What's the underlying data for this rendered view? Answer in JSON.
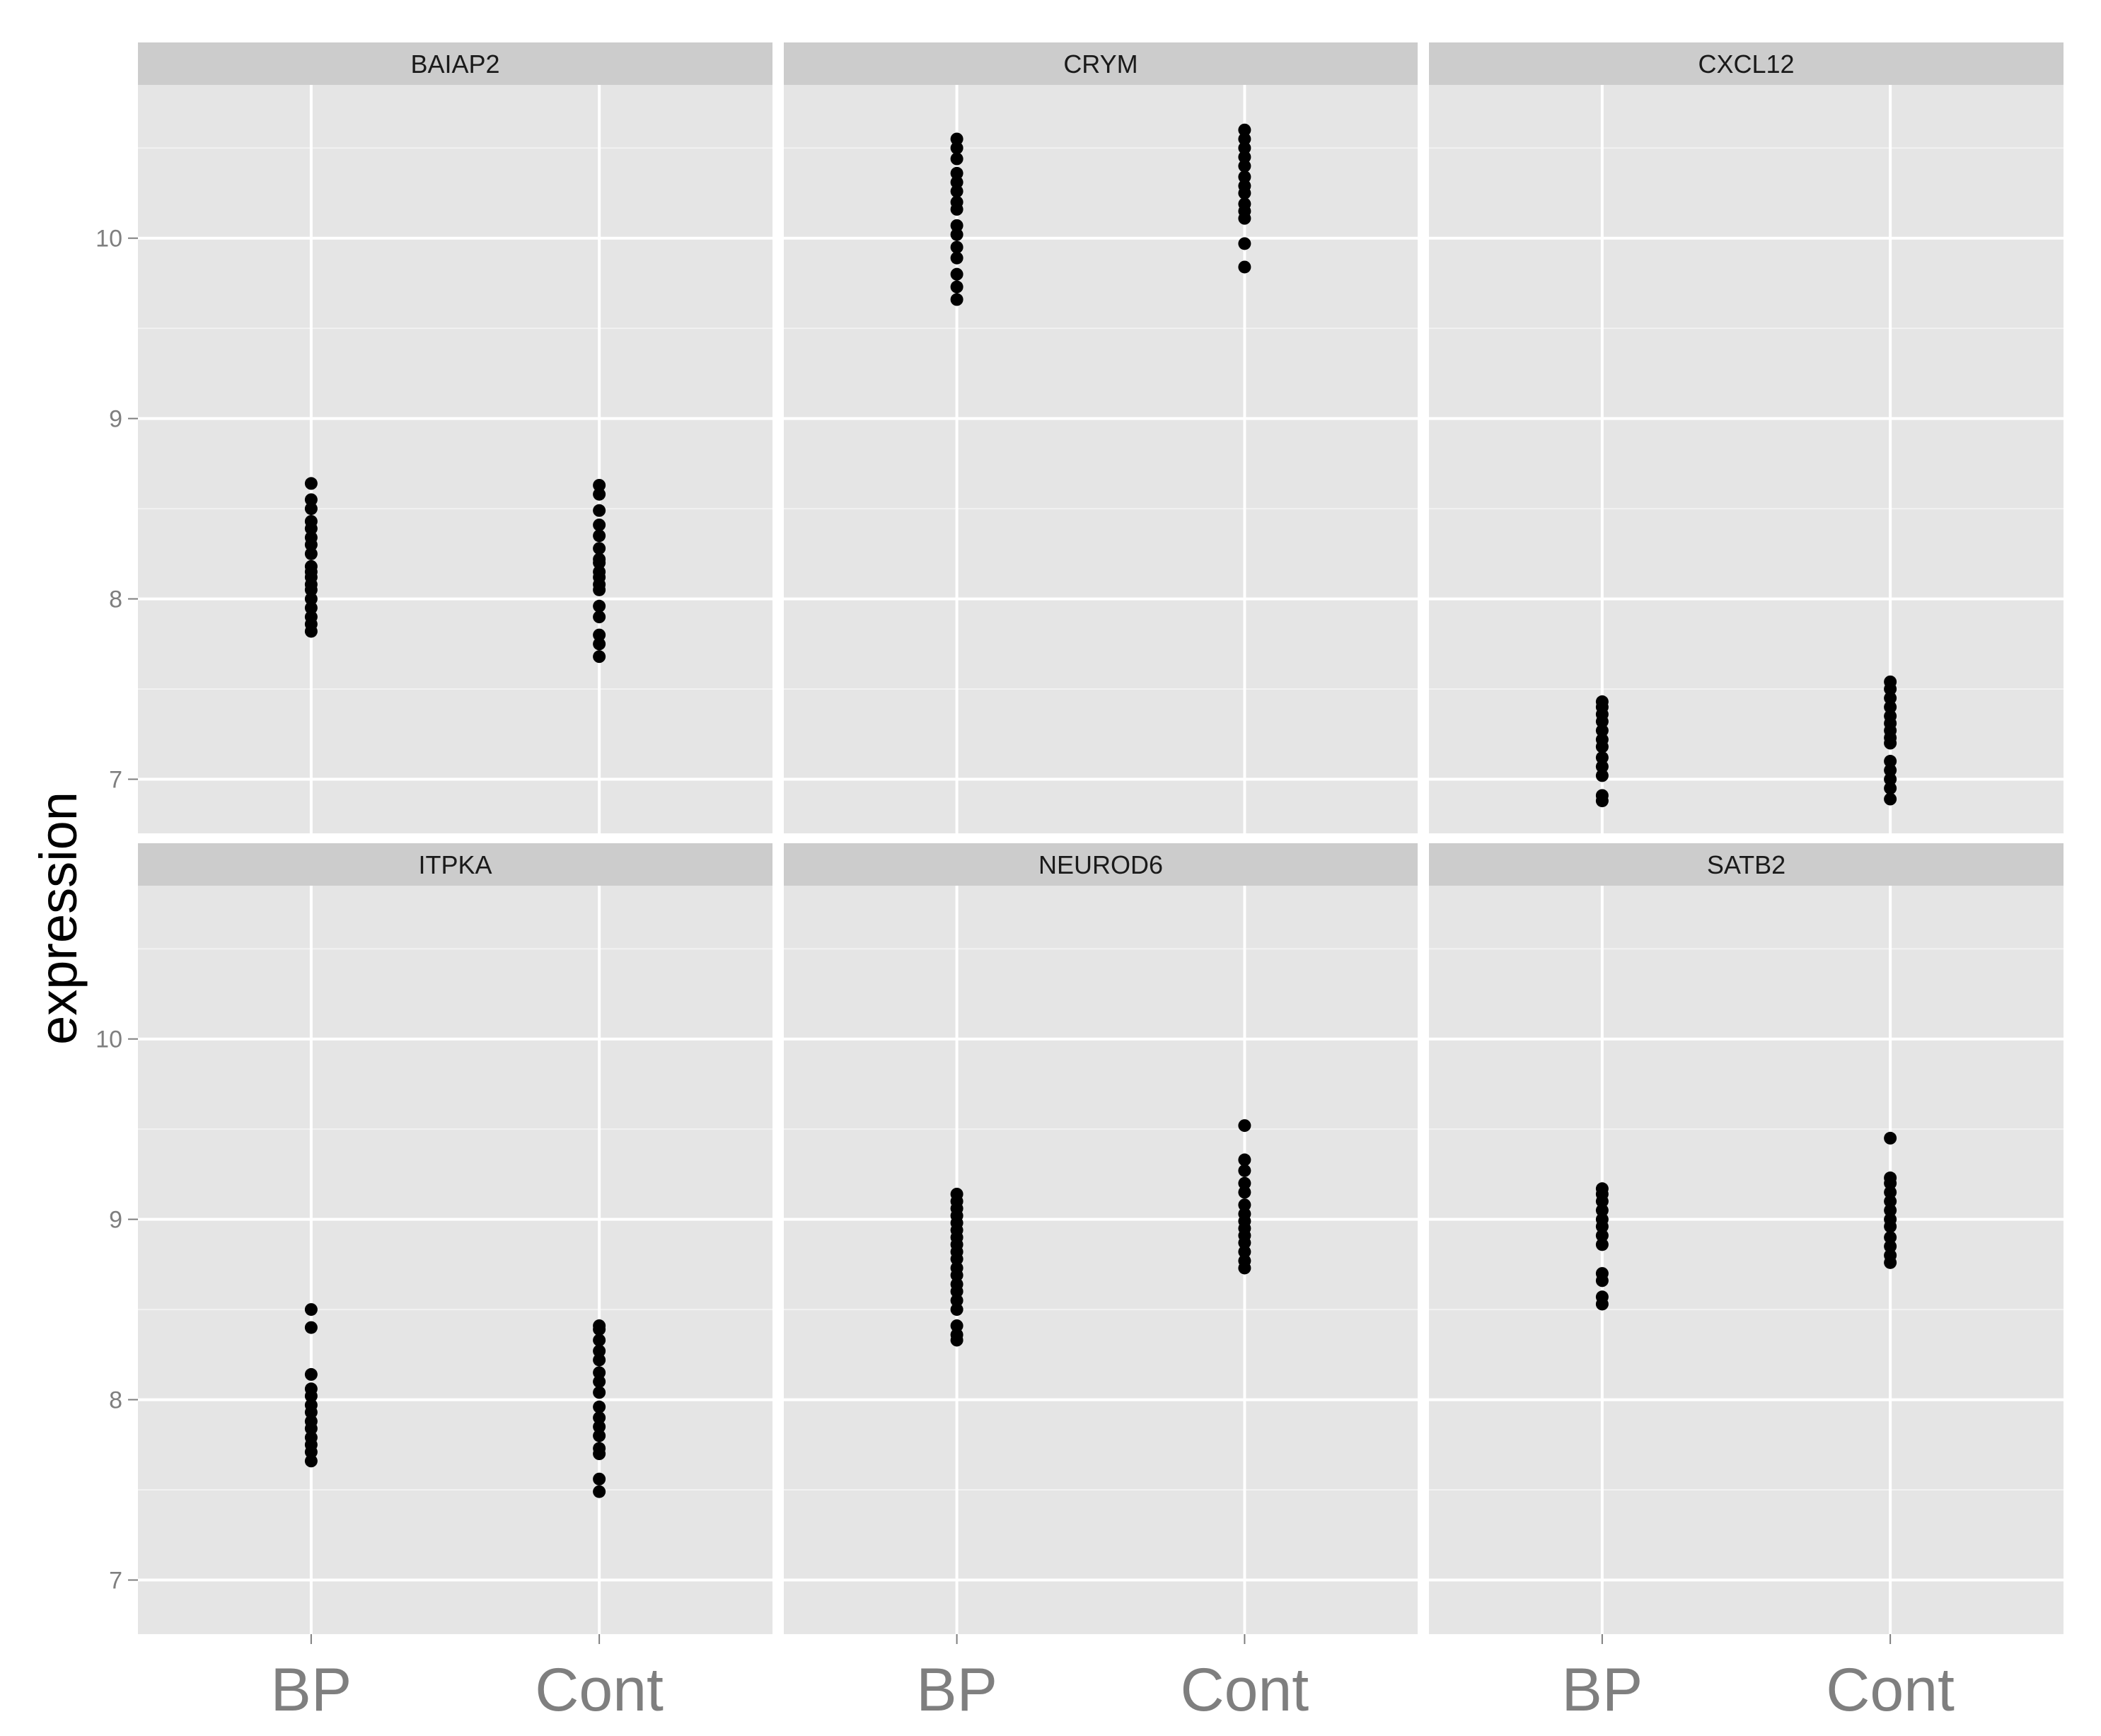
{
  "chart_data": {
    "type": "scatter",
    "layout": "faceted 2x3 strip plot",
    "ylabel": "expression",
    "xlabel": "",
    "categories": [
      "BP",
      "Cont"
    ],
    "y_ticks": [
      7,
      8,
      9,
      10
    ],
    "ylim": [
      6.7,
      10.85
    ],
    "grid": true,
    "point_color": "#000000",
    "panel_background": "#e5e5e5",
    "strip_background": "#cccccc",
    "facets": [
      {
        "title": "BAIAP2",
        "BP": [
          7.82,
          7.86,
          7.9,
          7.95,
          8.0,
          8.05,
          8.08,
          8.12,
          8.15,
          8.18,
          8.25,
          8.3,
          8.34,
          8.39,
          8.43,
          8.5,
          8.55,
          8.64
        ],
        "Cont": [
          7.68,
          7.75,
          7.8,
          7.9,
          7.96,
          8.05,
          8.08,
          8.12,
          8.15,
          8.2,
          8.22,
          8.28,
          8.35,
          8.41,
          8.49,
          8.58,
          8.63
        ]
      },
      {
        "title": "CRYM",
        "BP": [
          9.66,
          9.73,
          9.8,
          9.89,
          9.95,
          10.02,
          10.07,
          10.16,
          10.2,
          10.26,
          10.31,
          10.36,
          10.44,
          10.5,
          10.55
        ],
        "Cont": [
          9.84,
          9.97,
          10.11,
          10.15,
          10.19,
          10.25,
          10.29,
          10.34,
          10.4,
          10.45,
          10.5,
          10.55,
          10.6
        ]
      },
      {
        "title": "CXCL12",
        "BP": [
          6.88,
          6.91,
          7.02,
          7.07,
          7.12,
          7.18,
          7.22,
          7.27,
          7.32,
          7.36,
          7.4,
          7.43
        ],
        "Cont": [
          6.89,
          6.95,
          7.0,
          7.05,
          7.1,
          7.2,
          7.23,
          7.27,
          7.31,
          7.35,
          7.4,
          7.45,
          7.5,
          7.54
        ]
      },
      {
        "title": "ITPKA",
        "BP": [
          7.66,
          7.71,
          7.75,
          7.79,
          7.84,
          7.88,
          7.93,
          7.97,
          8.02,
          8.06,
          8.14,
          8.4,
          8.5
        ],
        "Cont": [
          7.49,
          7.56,
          7.7,
          7.73,
          7.8,
          7.85,
          7.9,
          7.96,
          8.04,
          8.1,
          8.15,
          8.22,
          8.27,
          8.33,
          8.39,
          8.41
        ]
      },
      {
        "title": "NEUROD6",
        "BP": [
          8.33,
          8.36,
          8.41,
          8.5,
          8.55,
          8.6,
          8.64,
          8.69,
          8.73,
          8.78,
          8.82,
          8.86,
          8.9,
          8.94,
          8.98,
          9.02,
          9.06,
          9.1,
          9.14
        ],
        "Cont": [
          8.73,
          8.77,
          8.82,
          8.87,
          8.91,
          8.95,
          8.99,
          9.03,
          9.08,
          9.15,
          9.2,
          9.27,
          9.33,
          9.52
        ]
      },
      {
        "title": "SATB2",
        "BP": [
          8.53,
          8.57,
          8.66,
          8.7,
          8.86,
          8.91,
          8.96,
          9.0,
          9.05,
          9.1,
          9.14,
          9.17
        ],
        "Cont": [
          8.76,
          8.8,
          8.85,
          8.9,
          8.96,
          9.0,
          9.05,
          9.1,
          9.15,
          9.2,
          9.23,
          9.45
        ]
      }
    ]
  }
}
